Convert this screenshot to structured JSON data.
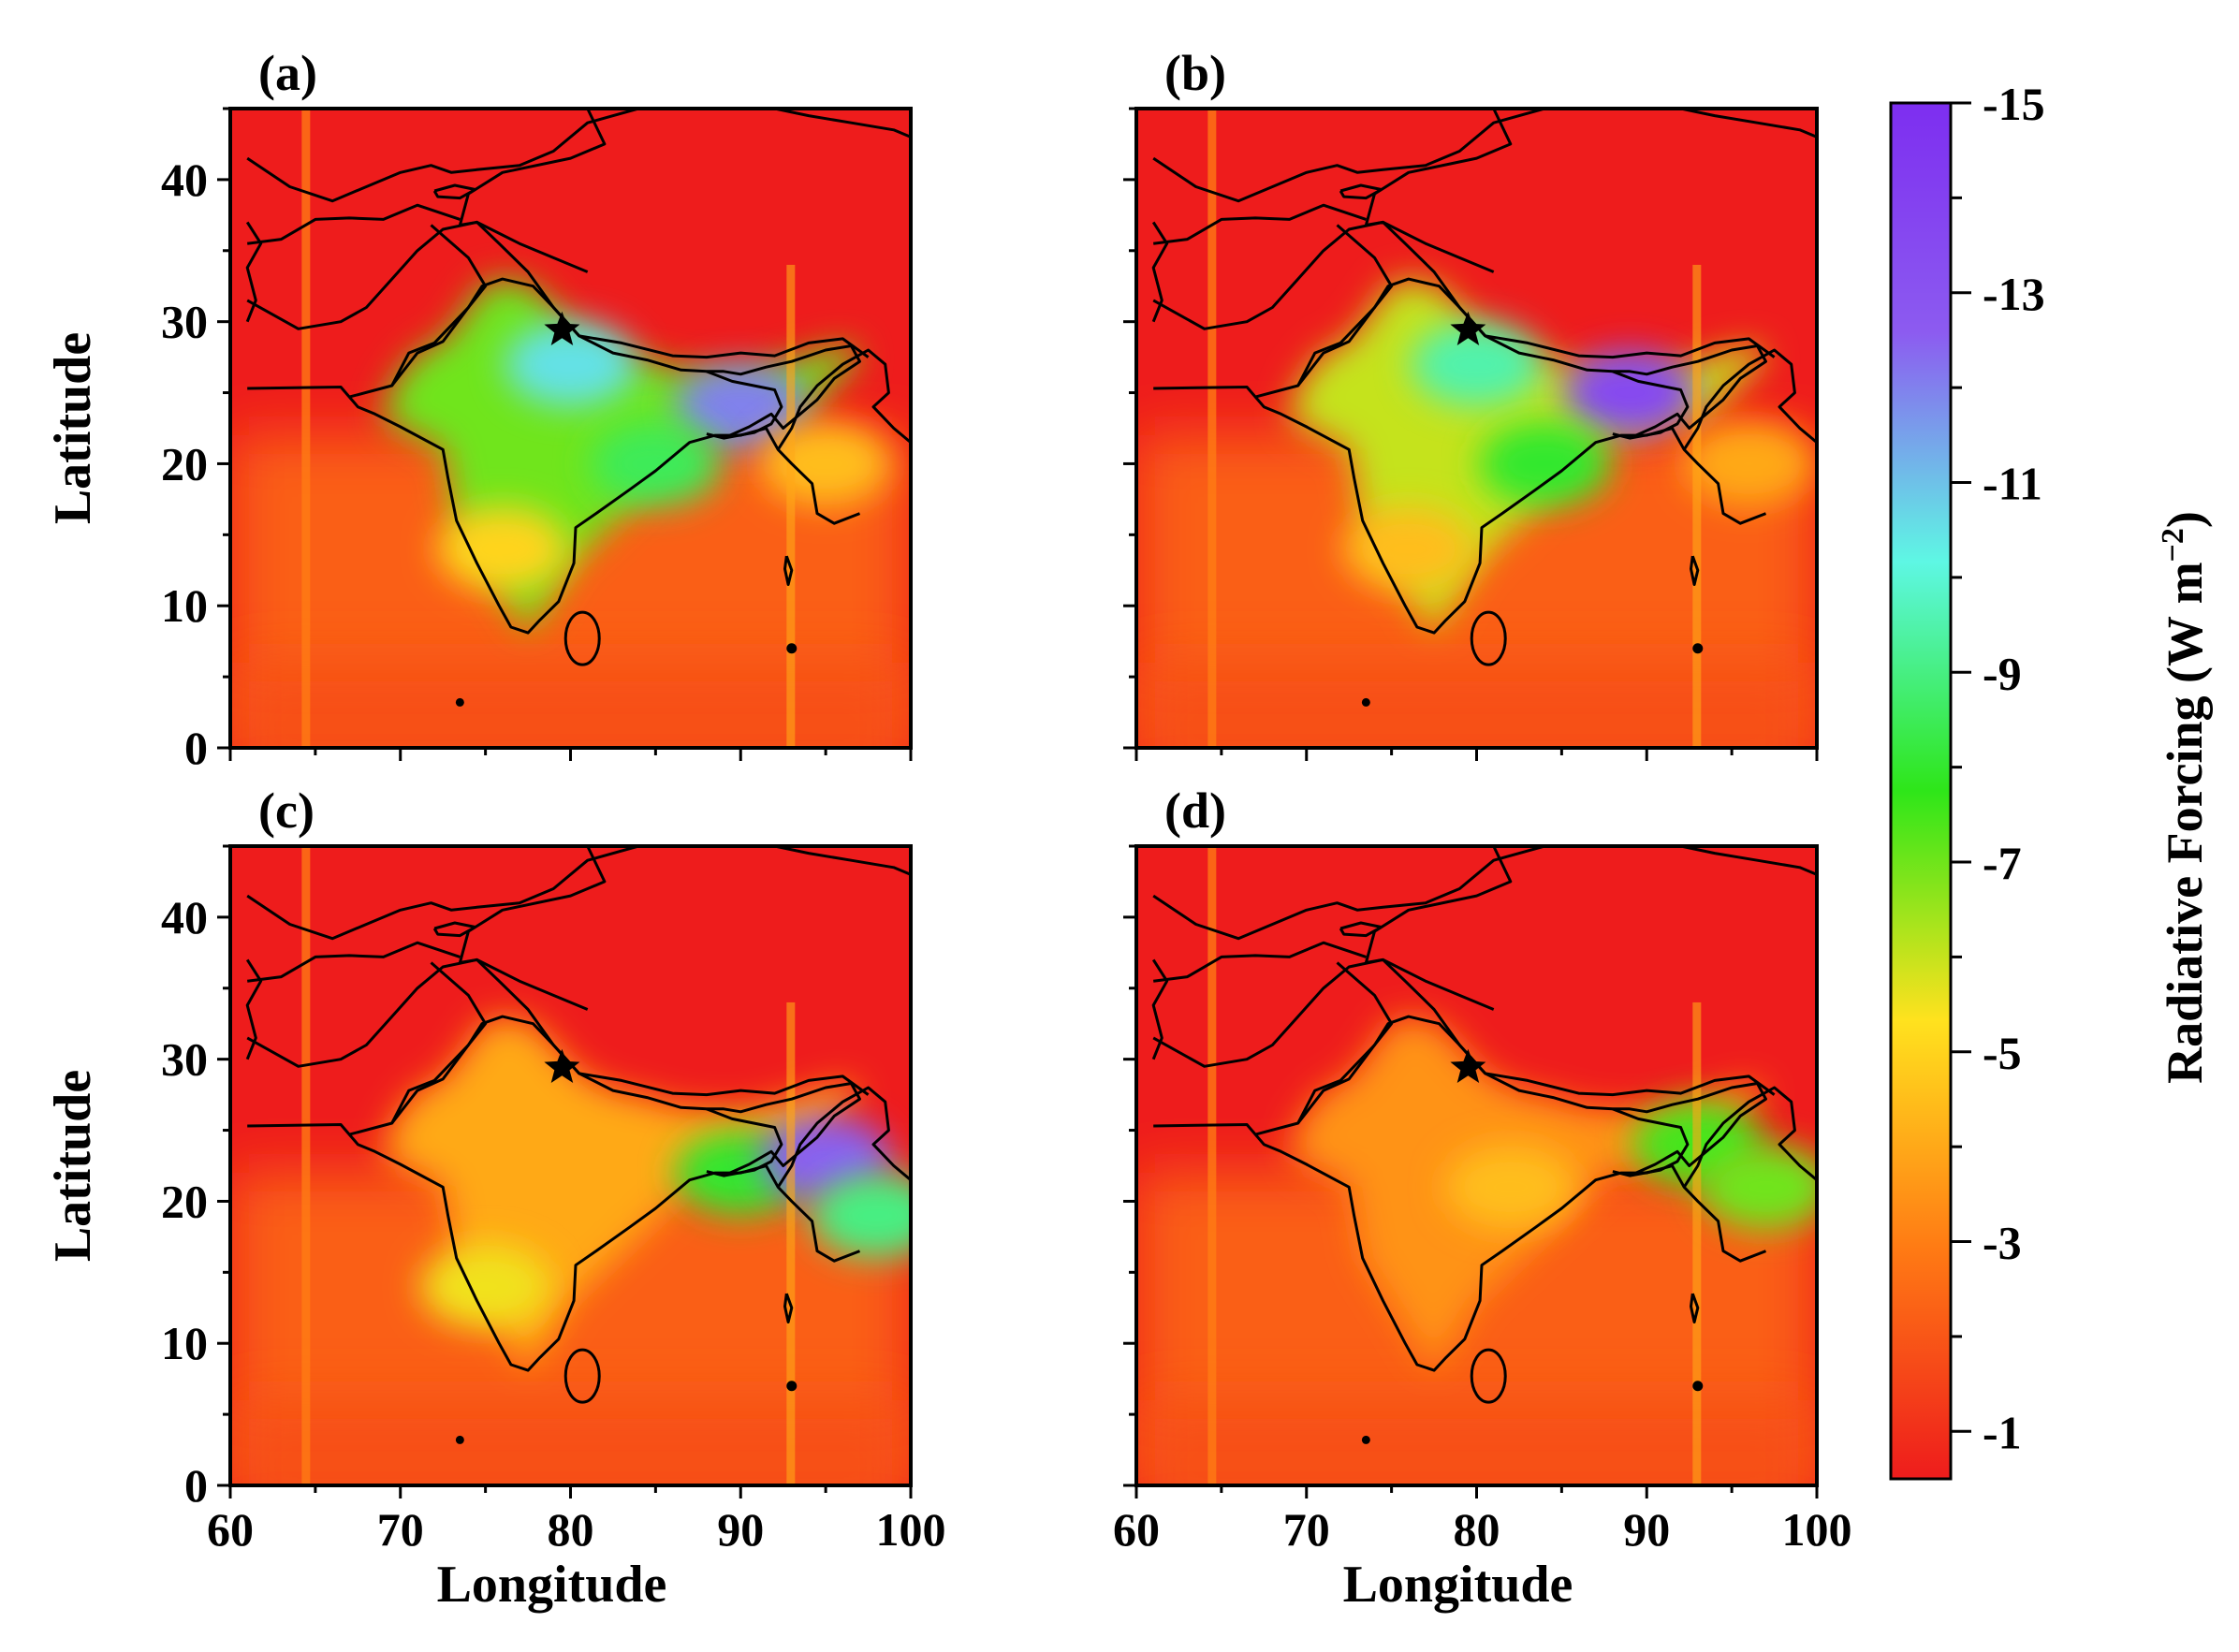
{
  "figure": {
    "colorbar": {
      "title": "Radiative Forcing (W m",
      "title_sup": "−2",
      "title_close": ")",
      "ticks": [
        "-15",
        "-13",
        "-11",
        "-9",
        "-7",
        "-5",
        "-3",
        "-1"
      ],
      "range": [
        -15,
        -0.5
      ],
      "colors": [
        "#ee1c1c",
        "#ff7a14",
        "#ffe21e",
        "#2ee619",
        "#5ef7e4",
        "#8c5bf0",
        "#7d2ef0"
      ]
    },
    "shared_axes": {
      "xlabel": "Longitude",
      "ylabel": "Latitude",
      "x_ticks": [
        "60",
        "70",
        "80",
        "90",
        "100"
      ],
      "y_ticks": [
        "0",
        "10",
        "20",
        "30",
        "40"
      ]
    }
  },
  "chart_data": [
    {
      "type": "heatmap",
      "panel": "(a)",
      "xlabel": "",
      "ylabel": "Latitude",
      "xlim": [
        60,
        100
      ],
      "ylim": [
        0,
        45
      ],
      "x_ticks": [
        60,
        70,
        80,
        90,
        100
      ],
      "y_ticks": [
        0,
        10,
        20,
        30,
        40
      ],
      "marker": {
        "symbol": "star",
        "lon": 79.5,
        "lat": 29.4
      },
      "features": [
        {
          "kind": "land",
          "value": -7
        },
        {
          "kind": "blob",
          "lon": 80,
          "lat": 27,
          "value": -10.5
        },
        {
          "kind": "blob",
          "lon": 90,
          "lat": 24,
          "value": -12
        },
        {
          "kind": "blob",
          "lon": 85,
          "lat": 20,
          "value": -8.5
        },
        {
          "kind": "blob",
          "lon": 76,
          "lat": 14,
          "value": -5
        },
        {
          "kind": "blob",
          "lon": 95,
          "lat": 20,
          "value": -4.5
        }
      ]
    },
    {
      "type": "heatmap",
      "panel": "(b)",
      "xlabel": "",
      "ylabel": "",
      "xlim": [
        60,
        100
      ],
      "ylim": [
        0,
        45
      ],
      "x_ticks": [
        60,
        70,
        80,
        90,
        100
      ],
      "y_ticks": [
        0,
        10,
        20,
        30,
        40
      ],
      "marker": {
        "symbol": "star",
        "lon": 79.5,
        "lat": 29.4
      },
      "features": [
        {
          "kind": "land",
          "value": -6
        },
        {
          "kind": "blob",
          "lon": 80,
          "lat": 27,
          "value": -9.5
        },
        {
          "kind": "blob",
          "lon": 89,
          "lat": 25,
          "value": -13.5
        },
        {
          "kind": "blob",
          "lon": 84,
          "lat": 20,
          "value": -8
        },
        {
          "kind": "blob",
          "lon": 76,
          "lat": 14,
          "value": -4.5
        },
        {
          "kind": "blob",
          "lon": 96,
          "lat": 20,
          "value": -4
        }
      ]
    },
    {
      "type": "heatmap",
      "panel": "(c)",
      "xlabel": "Longitude",
      "ylabel": "Latitude",
      "xlim": [
        60,
        100
      ],
      "ylim": [
        0,
        45
      ],
      "x_ticks": [
        60,
        70,
        80,
        90,
        100
      ],
      "y_ticks": [
        0,
        10,
        20,
        30,
        40
      ],
      "marker": {
        "symbol": "star",
        "lon": 79.5,
        "lat": 29.4
      },
      "features": [
        {
          "kind": "land",
          "value": -4
        },
        {
          "kind": "blob",
          "lon": 90,
          "lat": 22,
          "value": -8
        },
        {
          "kind": "blob",
          "lon": 95,
          "lat": 23,
          "value": -12.5
        },
        {
          "kind": "blob",
          "lon": 98,
          "lat": 19,
          "value": -9
        },
        {
          "kind": "blob",
          "lon": 75,
          "lat": 14,
          "value": -5.5
        }
      ]
    },
    {
      "type": "heatmap",
      "panel": "(d)",
      "xlabel": "Longitude",
      "ylabel": "",
      "xlim": [
        60,
        100
      ],
      "ylim": [
        0,
        45
      ],
      "x_ticks": [
        60,
        70,
        80,
        90,
        100
      ],
      "y_ticks": [
        0,
        10,
        20,
        30,
        40
      ],
      "marker": {
        "symbol": "star",
        "lon": 79.5,
        "lat": 29.4
      },
      "features": [
        {
          "kind": "land",
          "value": -3.5
        },
        {
          "kind": "blob",
          "lon": 93,
          "lat": 24,
          "value": -7.5
        },
        {
          "kind": "blob",
          "lon": 97,
          "lat": 21,
          "value": -7
        },
        {
          "kind": "blob",
          "lon": 82,
          "lat": 21,
          "value": -4.5
        }
      ]
    }
  ]
}
